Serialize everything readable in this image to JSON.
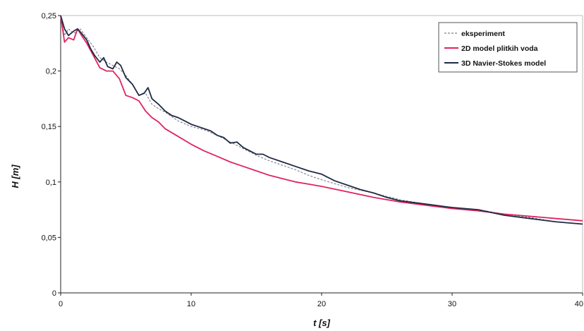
{
  "chart_data": {
    "type": "line",
    "title": "",
    "xlabel": "t [s]",
    "ylabel": "H [m]",
    "xlim": [
      0,
      40
    ],
    "ylim": [
      0,
      0.25
    ],
    "xticks": [
      0,
      10,
      20,
      30,
      40
    ],
    "yticks": [
      0,
      0.05,
      0.1,
      0.15,
      0.2,
      0.25
    ],
    "xtick_labels": [
      "0",
      "10",
      "20",
      "30",
      "40"
    ],
    "ytick_labels": [
      "0",
      "0,05",
      "0,1",
      "0,15",
      "0,2",
      "0,25"
    ],
    "grid": false,
    "legend_position": "top-right",
    "series": [
      {
        "name": "eksperiment",
        "color": "#7f7f90",
        "dashed": true,
        "x": [
          0,
          0.3,
          0.6,
          1.0,
          1.5,
          2.0,
          2.5,
          3.0,
          3.5,
          4.0,
          4.5,
          5.0,
          5.5,
          6.0,
          6.5,
          7.0,
          7.5,
          8.0,
          9.0,
          10.0,
          11.0,
          12.0,
          13.0,
          14.0,
          15.0,
          16.0,
          17.0,
          18.0,
          19.0,
          20.0,
          22.0,
          24.0,
          26.0,
          28.0,
          30.0,
          32.0,
          34.0,
          36.0,
          38.0,
          40.0
        ],
        "y": [
          0.25,
          0.232,
          0.238,
          0.234,
          0.238,
          0.23,
          0.222,
          0.212,
          0.208,
          0.205,
          0.202,
          0.196,
          0.188,
          0.178,
          0.18,
          0.17,
          0.166,
          0.163,
          0.155,
          0.15,
          0.147,
          0.142,
          0.136,
          0.13,
          0.124,
          0.119,
          0.115,
          0.111,
          0.106,
          0.102,
          0.095,
          0.09,
          0.084,
          0.08,
          0.077,
          0.075,
          0.071,
          0.068,
          0.064,
          0.062
        ]
      },
      {
        "name": "2D model plitkih voda",
        "color": "#e0245e",
        "dashed": false,
        "x": [
          0,
          0.3,
          0.6,
          1.0,
          1.3,
          1.6,
          2.0,
          2.5,
          3.0,
          3.5,
          4.0,
          4.5,
          5.0,
          5.5,
          6.0,
          6.5,
          7.0,
          7.5,
          8.0,
          9.0,
          10.0,
          11.0,
          12.0,
          13.0,
          14.0,
          15.0,
          16.0,
          17.0,
          18.0,
          19.0,
          20.0,
          22.0,
          24.0,
          26.0,
          28.0,
          30.0,
          32.0,
          34.0,
          36.0,
          38.0,
          40.0
        ],
        "y": [
          0.25,
          0.226,
          0.23,
          0.228,
          0.238,
          0.232,
          0.225,
          0.214,
          0.203,
          0.2,
          0.2,
          0.193,
          0.178,
          0.176,
          0.173,
          0.164,
          0.158,
          0.154,
          0.148,
          0.141,
          0.134,
          0.128,
          0.123,
          0.118,
          0.114,
          0.11,
          0.106,
          0.103,
          0.1,
          0.098,
          0.096,
          0.091,
          0.086,
          0.082,
          0.079,
          0.076,
          0.074,
          0.071,
          0.069,
          0.067,
          0.065
        ]
      },
      {
        "name": "3D Navier-Stokes model",
        "color": "#1f2a44",
        "dashed": false,
        "x": [
          0,
          0.3,
          0.6,
          1.0,
          1.3,
          1.6,
          2.0,
          2.3,
          2.6,
          3.0,
          3.3,
          3.6,
          4.0,
          4.3,
          4.6,
          5.0,
          5.5,
          6.0,
          6.4,
          6.7,
          7.0,
          7.5,
          8.0,
          8.5,
          9.0,
          9.5,
          10.0,
          10.5,
          11.0,
          11.5,
          12.0,
          12.5,
          13.0,
          13.5,
          14.0,
          14.5,
          15.0,
          15.5,
          16.0,
          17.0,
          18.0,
          19.0,
          20.0,
          21.0,
          22.0,
          23.0,
          24.0,
          25.0,
          26.0,
          28.0,
          30.0,
          32.0,
          34.0,
          36.0,
          38.0,
          40.0
        ],
        "y": [
          0.25,
          0.238,
          0.232,
          0.236,
          0.238,
          0.234,
          0.228,
          0.22,
          0.214,
          0.208,
          0.212,
          0.204,
          0.202,
          0.208,
          0.205,
          0.194,
          0.188,
          0.178,
          0.18,
          0.185,
          0.175,
          0.17,
          0.164,
          0.16,
          0.158,
          0.155,
          0.152,
          0.15,
          0.148,
          0.146,
          0.142,
          0.14,
          0.135,
          0.136,
          0.131,
          0.128,
          0.125,
          0.125,
          0.122,
          0.118,
          0.114,
          0.11,
          0.107,
          0.101,
          0.097,
          0.093,
          0.09,
          0.086,
          0.083,
          0.08,
          0.077,
          0.075,
          0.07,
          0.067,
          0.064,
          0.062
        ]
      }
    ]
  }
}
